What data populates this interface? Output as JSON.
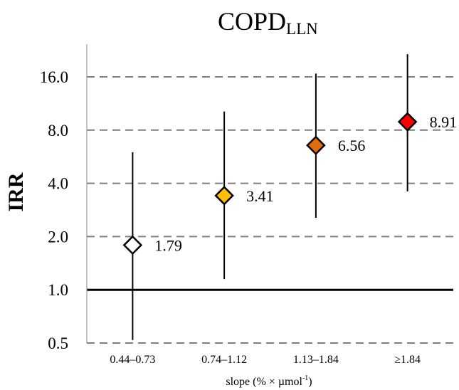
{
  "chart_data": {
    "type": "scatter",
    "title": "COPD",
    "title_subscript": "LLN",
    "ylabel": "IRR",
    "xlabel": "slope (% × µmol",
    "xlabel_superscript": "-1",
    "xlabel_close": ")",
    "y_scale": "log2",
    "ylim": [
      0.5,
      22.6
    ],
    "y_ticks": [
      {
        "value": 0.5,
        "label": "0.5"
      },
      {
        "value": 1.0,
        "label": "1.0"
      },
      {
        "value": 2.0,
        "label": "2.0"
      },
      {
        "value": 4.0,
        "label": "4.0"
      },
      {
        "value": 8.0,
        "label": "8.0"
      },
      {
        "value": 16.0,
        "label": "16.0"
      }
    ],
    "reference_line": 1.0,
    "grid": "horizontal dashed",
    "categories": [
      "0.44–0.73",
      "0.74–1.12",
      "1.13–1.84",
      "≥1.84"
    ],
    "points": [
      {
        "category": "0.44–0.73",
        "value": 1.79,
        "label": "1.79",
        "ci_low": 0.52,
        "ci_high": 6.0,
        "fill": "#ffffff"
      },
      {
        "category": "0.74–1.12",
        "value": 3.41,
        "label": "3.41",
        "ci_low": 1.15,
        "ci_high": 10.2,
        "fill": "#ffc000"
      },
      {
        "category": "1.13–1.84",
        "value": 6.56,
        "label": "6.56",
        "ci_low": 2.55,
        "ci_high": 16.7,
        "fill": "#e26b0a"
      },
      {
        "category": "≥1.84",
        "value": 8.91,
        "label": "8.91",
        "ci_low": 3.6,
        "ci_high": 21.5,
        "fill": "#ff0000"
      }
    ]
  }
}
